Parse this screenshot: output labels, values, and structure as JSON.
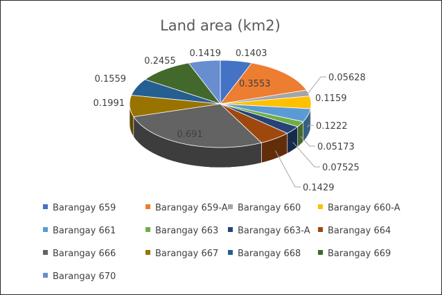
{
  "chart_data": {
    "type": "pie",
    "title": "Land area (km2)",
    "legend_position": "bottom",
    "categories": [
      "Barangay 659",
      "Barangay 659-A",
      "Barangay 660",
      "Barangay 660-A",
      "Barangay 661",
      "Barangay 663",
      "Barangay 663-A",
      "Barangay 664",
      "Barangay 666",
      "Barangay 667",
      "Barangay 668",
      "Barangay 669",
      "Barangay 670"
    ],
    "values": [
      0.1403,
      0.3553,
      0.05628,
      0.1159,
      0.1222,
      0.05173,
      0.07525,
      0.1429,
      0.691,
      0.1991,
      0.1559,
      0.2455,
      0.1419
    ],
    "value_labels": [
      "0.1403",
      "0.3553",
      "0.05628",
      "0.1159",
      "0.1222",
      "0.05173",
      "0.07525",
      "0.1429",
      "0.691",
      "0.1991",
      "0.1559",
      "0.2455",
      "0.1419"
    ],
    "colors": [
      "#4472C4",
      "#ED7D31",
      "#A5A5A5",
      "#FFC000",
      "#5B9BD5",
      "#70AD47",
      "#264478",
      "#9E480E",
      "#636363",
      "#997300",
      "#255E91",
      "#43682B",
      "#698ED0"
    ]
  }
}
